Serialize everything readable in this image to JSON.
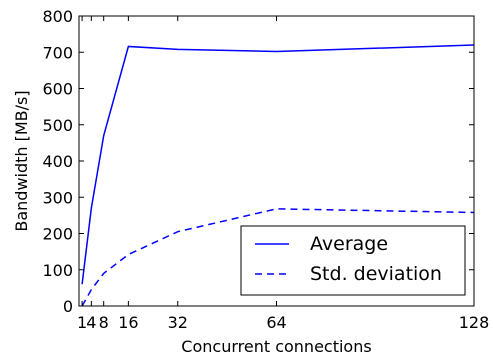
{
  "chart_data": {
    "type": "line",
    "xlabel": "Concurrent connections",
    "ylabel": "Bandwidth [MB/s]",
    "xlim": [
      0,
      128
    ],
    "ylim": [
      0,
      800
    ],
    "x_ticks": [
      1,
      4,
      8,
      16,
      32,
      64,
      128
    ],
    "x_tick_labels": [
      "1",
      "4",
      "8",
      "16",
      "32",
      "64",
      "128"
    ],
    "y_ticks": [
      0,
      100,
      200,
      300,
      400,
      500,
      600,
      700,
      800
    ],
    "y_tick_labels": [
      "0",
      "100",
      "200",
      "300",
      "400",
      "500",
      "600",
      "700",
      "800"
    ],
    "grid": false,
    "legend_position": "lower-right",
    "series": [
      {
        "name": "Average",
        "style": "solid",
        "color": "#0000ff",
        "x": [
          1,
          4,
          8,
          16,
          32,
          64,
          128
        ],
        "y": [
          60,
          270,
          470,
          716,
          708,
          702,
          720
        ]
      },
      {
        "name": "Std. deviation",
        "style": "dashed",
        "color": "#0000ff",
        "x": [
          1,
          4,
          8,
          16,
          32,
          64,
          128
        ],
        "y": [
          0,
          45,
          90,
          142,
          205,
          268,
          258
        ]
      }
    ]
  }
}
